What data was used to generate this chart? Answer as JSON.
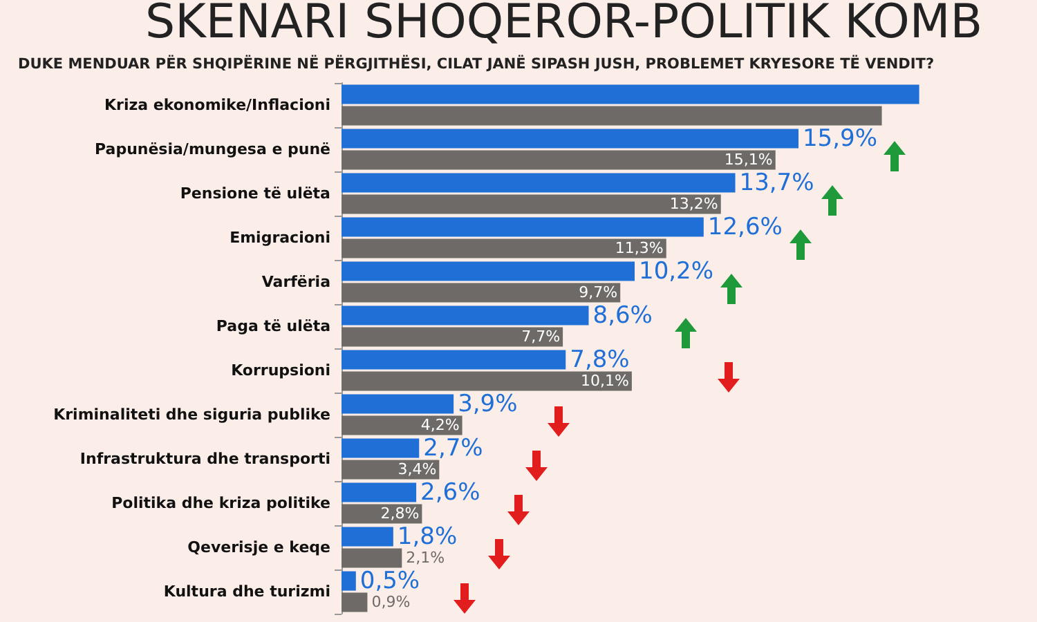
{
  "chart_data": {
    "type": "bar",
    "orientation": "horizontal",
    "title": "SKENARI SHOQËROR-POLITIK KOMB",
    "subtitle": "DUKE MENDUAR PËR SHQIPËRINE NË PËRGJITHËSI, CILAT JANË SIPASH JUSH, PROBLEMET KRYESORE TË VENDIT?",
    "categories": [
      "Kriza ekonomike/Inflacioni",
      "Papunësia/mungesa e punë",
      "Pensione të ulëta",
      "Emigracioni",
      "Varfëria",
      "Paga të ulëta",
      "Korrupsioni",
      "Kriminaliteti dhe siguria publike",
      "Infrastruktura dhe transporti",
      "Politika dhe kriza politike",
      "Qeverisje e keqe",
      "Kultura dhe turizmi"
    ],
    "series": [
      {
        "color": "#1f6fd6",
        "values": [
          20.1,
          15.9,
          13.7,
          12.6,
          10.2,
          8.6,
          7.8,
          3.9,
          2.7,
          2.6,
          1.8,
          0.5
        ],
        "value_labels": [
          null,
          "15,9%",
          "13,7%",
          "12,6%",
          "10,2%",
          "8,6%",
          "7,8%",
          "3,9%",
          "2,7%",
          "2,6%",
          "1,8%",
          "0,5%"
        ]
      },
      {
        "color": "#6e6a67",
        "values": [
          18.8,
          15.1,
          13.2,
          11.3,
          9.7,
          7.7,
          10.1,
          4.2,
          3.4,
          2.8,
          2.1,
          0.9
        ],
        "value_labels": [
          null,
          "15,1%",
          "13,2%",
          "11,3%",
          "9,7%",
          "7,7%",
          "10,1%",
          "4,2%",
          "3,4%",
          "2,8%",
          "2,1%",
          "0,9%"
        ]
      }
    ]
  }
}
